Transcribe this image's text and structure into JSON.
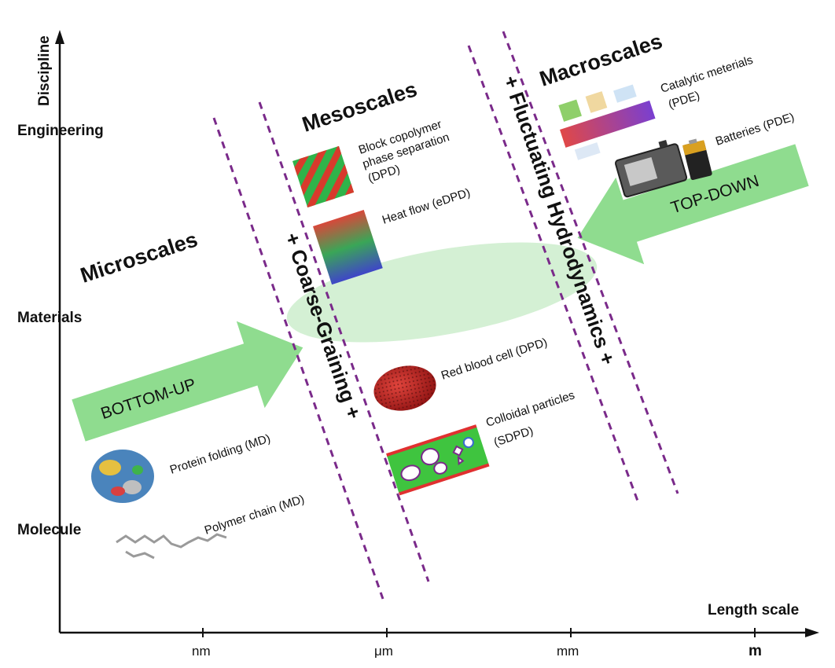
{
  "axes": {
    "y_title": "Discipline",
    "x_title": "Length scale",
    "y_levels": [
      "Engineering",
      "Materials",
      "Molecule"
    ],
    "x_ticks": [
      "nm",
      "μm",
      "mm",
      "m"
    ]
  },
  "regions": {
    "micro": "Microscales",
    "meso": "Mesoscales",
    "macro": "Macroscales"
  },
  "bands": {
    "coarse": "+ Coarse-Graining +",
    "fluct": "+ Fluctuating Hydrodynamics +"
  },
  "arrows": {
    "bottom_up": "BOTTOM-UP",
    "top_down": "TOP-DOWN"
  },
  "examples": {
    "protein": "Protein folding (MD)",
    "polymer": "Polymer chain (MD)",
    "block_1": "Block copolymer",
    "block_2": "phase separation",
    "block_3": "(DPD)",
    "heat": "Heat flow (eDPD)",
    "rbc": "Red blood cell (DPD)",
    "colloid_1": "Colloidal particles",
    "colloid_2": "(SDPD)",
    "catalytic_1": "Catalytic meterials",
    "catalytic_2": "(PDE)",
    "batteries": "Batteries (PDE)"
  },
  "colors": {
    "arrow_green": "#8fdc8f",
    "ellipse_green": "#cfeecf",
    "dash_purple": "#7a2a8a",
    "axis": "#111111"
  }
}
